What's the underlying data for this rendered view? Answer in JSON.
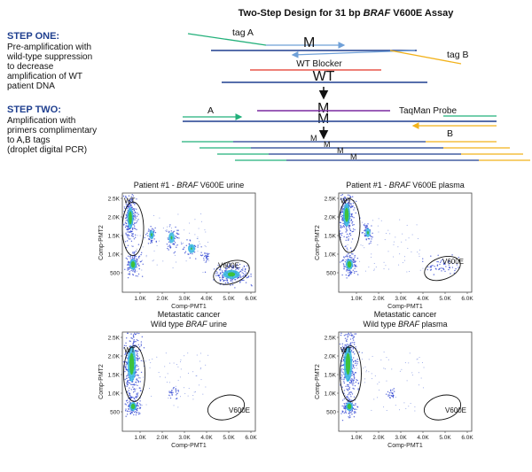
{
  "figure": {
    "title": [
      {
        "text": "Two-Step Design for 31 bp "
      },
      {
        "text": "BRAF",
        "italic": true
      },
      {
        "text": " V600E Assay"
      }
    ],
    "step_one": {
      "heading": "STEP ONE:",
      "lines": [
        "Pre-amplification with",
        "wild-type suppression",
        "to decrease",
        "amplification of WT",
        "patient DNA"
      ]
    },
    "step_two": {
      "heading": "STEP TWO:",
      "lines": [
        "Amplification with",
        "primers complimentary",
        "to A,B tags",
        "(droplet digital PCR)"
      ]
    },
    "diagram": {
      "tag_a": "tag A",
      "tag_b": "tag B",
      "mutant": "M",
      "blocker": "WT Blocker",
      "wild_type": "WT",
      "primer_a": "A",
      "primer_b": "B",
      "probe": "TaqMan Probe",
      "product_marks": [
        "M",
        "M",
        "M",
        "M"
      ]
    },
    "x_axis_label": "Comp-PMT1",
    "y_axis_label": "Comp-PMT2",
    "x_ticks": [
      "1.0K",
      "2.0K",
      "3.0K",
      "4.0K",
      "5.0K",
      "6.0K"
    ],
    "y_ticks": [
      "500",
      "1.0K",
      "1.5K",
      "2.0K",
      "2.5K"
    ],
    "panels": [
      {
        "title": [
          [
            {
              "text": "Patient #1 - "
            },
            {
              "text": "BRAF",
              "italic": true
            },
            {
              "text": " V600E urine"
            }
          ]
        ],
        "gates": [
          "WT",
          "V600E"
        ]
      },
      {
        "title": [
          [
            {
              "text": "Patient #1 - "
            },
            {
              "text": "BRAF",
              "italic": true
            },
            {
              "text": " V600E plasma"
            }
          ]
        ],
        "gates": [
          "WT",
          "V600E"
        ]
      },
      {
        "title": [
          [
            {
              "text": "Metastatic cancer"
            }
          ],
          [
            {
              "text": "Wild type "
            },
            {
              "text": "BRAF",
              "italic": true
            },
            {
              "text": " urine"
            }
          ]
        ],
        "gates": [
          "WT",
          "V600E"
        ]
      },
      {
        "title": [
          [
            {
              "text": "Metastatic cancer"
            }
          ],
          [
            {
              "text": "Wild type "
            },
            {
              "text": "BRAF",
              "italic": true
            },
            {
              "text": " plasma"
            }
          ]
        ],
        "gates": [
          "WT",
          "V600E"
        ]
      }
    ]
  }
}
